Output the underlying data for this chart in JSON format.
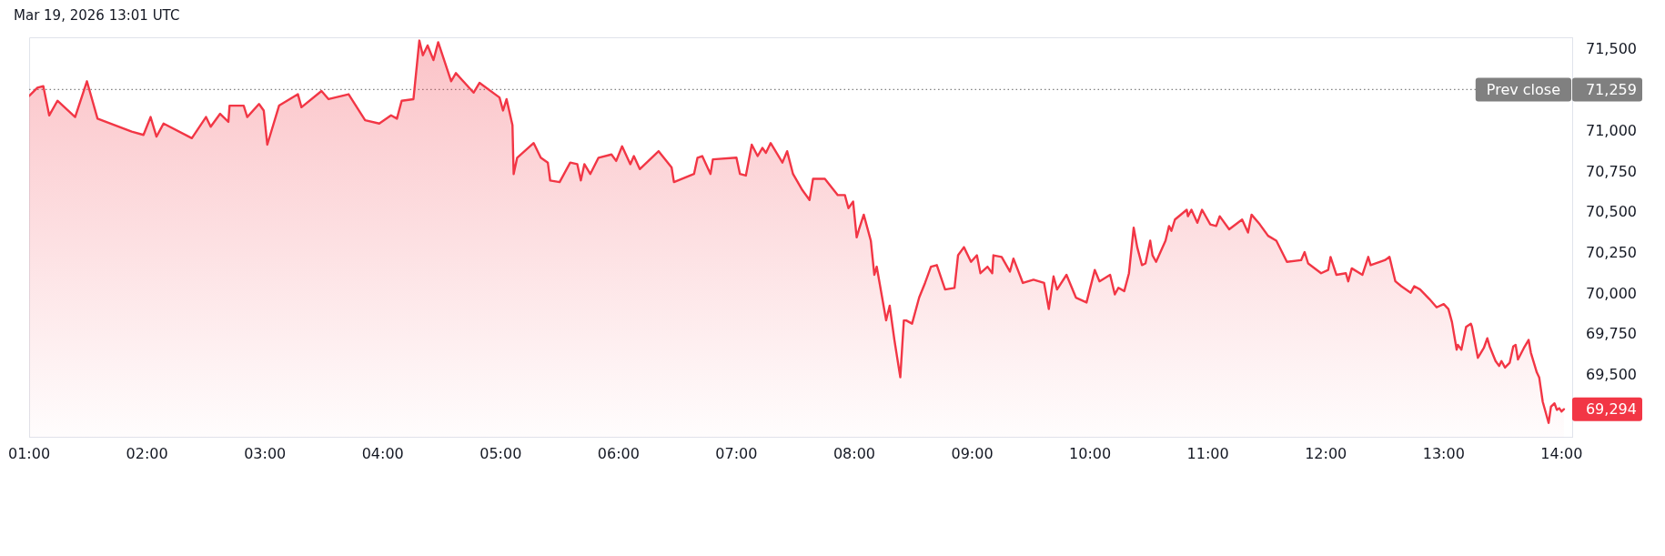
{
  "chart_data": {
    "type": "area",
    "color": "#f23645",
    "x": [
      1.0,
      1.07,
      1.12,
      1.17,
      1.24,
      1.39,
      1.49,
      1.58,
      1.87,
      1.97,
      2.03,
      2.08,
      2.14,
      2.38,
      2.5,
      2.54,
      2.62,
      2.69,
      2.7,
      2.82,
      2.85,
      2.95,
      2.99,
      3.02,
      3.12,
      3.28,
      3.31,
      3.48,
      3.54,
      3.71,
      3.85,
      3.97,
      4.07,
      4.12,
      4.16,
      4.26,
      4.31,
      4.34,
      4.38,
      4.43,
      4.47,
      4.58,
      4.62,
      4.77,
      4.82,
      4.99,
      5.02,
      5.05,
      5.1,
      5.11,
      5.14,
      5.28,
      5.34,
      5.4,
      5.42,
      5.5,
      5.59,
      5.65,
      5.68,
      5.71,
      5.76,
      5.83,
      5.94,
      5.98,
      6.03,
      6.1,
      6.13,
      6.18,
      6.34,
      6.45,
      6.47,
      6.64,
      6.67,
      6.71,
      6.78,
      6.8,
      7.0,
      7.03,
      7.08,
      7.13,
      7.18,
      7.22,
      7.25,
      7.29,
      7.39,
      7.43,
      7.48,
      7.56,
      7.62,
      7.65,
      7.75,
      7.86,
      7.92,
      7.95,
      7.99,
      8.02,
      8.04,
      8.08,
      8.14,
      8.17,
      8.19,
      8.27,
      8.3,
      8.34,
      8.39,
      8.42,
      8.44,
      8.49,
      8.55,
      8.6,
      8.65,
      8.7,
      8.77,
      8.85,
      8.88,
      8.93,
      8.99,
      9.04,
      9.07,
      9.13,
      9.17,
      9.18,
      9.25,
      9.32,
      9.35,
      9.43,
      9.52,
      9.61,
      9.65,
      9.69,
      9.72,
      9.8,
      9.88,
      9.97,
      10.04,
      10.08,
      10.17,
      10.21,
      10.24,
      10.29,
      10.33,
      10.37,
      10.4,
      10.44,
      10.47,
      10.51,
      10.53,
      10.56,
      10.64,
      10.67,
      10.69,
      10.72,
      10.82,
      10.83,
      10.86,
      10.91,
      10.95,
      11.02,
      11.07,
      11.1,
      11.18,
      11.29,
      11.34,
      11.37,
      11.44,
      11.51,
      11.58,
      11.67,
      11.79,
      11.82,
      11.85,
      11.96,
      12.02,
      12.04,
      12.09,
      12.17,
      12.19,
      12.22,
      12.31,
      12.36,
      12.38,
      12.5,
      12.54,
      12.59,
      12.64,
      12.72,
      12.75,
      12.8,
      12.88,
      12.94,
      13.0,
      13.04,
      13.07,
      13.11,
      13.12,
      13.15,
      13.19,
      13.23,
      13.24,
      13.29,
      13.34,
      13.37,
      13.39,
      13.44,
      13.47,
      13.49,
      13.52,
      13.56,
      13.59,
      13.61,
      13.63,
      13.68,
      13.72,
      13.74,
      13.79,
      13.81,
      13.84,
      13.89,
      13.91,
      13.94,
      13.96,
      13.98,
      14.0,
      14.02
    ],
    "values": [
      71220,
      71270,
      71280,
      71100,
      71190,
      71090,
      71310,
      71080,
      71000,
      70980,
      71090,
      70970,
      71050,
      70960,
      71090,
      71030,
      71110,
      71060,
      71160,
      71160,
      71090,
      71170,
      71130,
      70920,
      71160,
      71230,
      71150,
      71250,
      71200,
      71230,
      71070,
      71050,
      71100,
      71080,
      71190,
      71200,
      71560,
      71470,
      71530,
      71440,
      71550,
      71310,
      71360,
      71240,
      71300,
      71210,
      71130,
      71200,
      71040,
      70740,
      70840,
      70930,
      70840,
      70810,
      70700,
      70690,
      70810,
      70800,
      70700,
      70800,
      70740,
      70840,
      70860,
      70820,
      70910,
      70800,
      70850,
      70770,
      70880,
      70780,
      70690,
      70740,
      70840,
      70850,
      70740,
      70830,
      70840,
      70740,
      70730,
      70920,
      70850,
      70900,
      70870,
      70930,
      70810,
      70880,
      70740,
      70640,
      70580,
      70710,
      70710,
      70610,
      70610,
      70530,
      70570,
      70350,
      70400,
      70490,
      70330,
      70120,
      70170,
      69840,
      69930,
      69720,
      69490,
      69840,
      69840,
      69820,
      69980,
      70070,
      70170,
      70180,
      70030,
      70040,
      70240,
      70290,
      70200,
      70240,
      70130,
      70170,
      70130,
      70240,
      70230,
      70140,
      70220,
      70070,
      70090,
      70070,
      69910,
      70110,
      70030,
      70120,
      69980,
      69950,
      70150,
      70080,
      70120,
      70000,
      70040,
      70020,
      70130,
      70410,
      70290,
      70180,
      70190,
      70330,
      70240,
      70200,
      70330,
      70420,
      70390,
      70460,
      70520,
      70480,
      70520,
      70440,
      70520,
      70430,
      70420,
      70480,
      70400,
      70460,
      70380,
      70490,
      70430,
      70360,
      70330,
      70200,
      70210,
      70260,
      70190,
      70130,
      70150,
      70230,
      70120,
      70130,
      70080,
      70160,
      70120,
      70230,
      70180,
      70210,
      70230,
      70080,
      70050,
      70010,
      70050,
      70030,
      69970,
      69920,
      69940,
      69910,
      69830,
      69660,
      69690,
      69660,
      69800,
      69820,
      69800,
      69610,
      69670,
      69730,
      69680,
      69590,
      69560,
      69590,
      69550,
      69580,
      69680,
      69690,
      69600,
      69670,
      69720,
      69640,
      69520,
      69490,
      69340,
      69210,
      69310,
      69330,
      69290,
      69300,
      69280,
      69294
    ],
    "xlim": [
      1,
      14.09
    ],
    "ylim": [
      69120,
      71580
    ],
    "xticks": [
      {
        "value": 1,
        "label": "01:00"
      },
      {
        "value": 2,
        "label": "02:00"
      },
      {
        "value": 3,
        "label": "03:00"
      },
      {
        "value": 4,
        "label": "04:00"
      },
      {
        "value": 5,
        "label": "05:00"
      },
      {
        "value": 6,
        "label": "06:00"
      },
      {
        "value": 7,
        "label": "07:00"
      },
      {
        "value": 8,
        "label": "08:00"
      },
      {
        "value": 9,
        "label": "09:00"
      },
      {
        "value": 10,
        "label": "10:00"
      },
      {
        "value": 11,
        "label": "11:00"
      },
      {
        "value": 12,
        "label": "12:00"
      },
      {
        "value": 13,
        "label": "13:00"
      },
      {
        "value": 14,
        "label": "14:00"
      }
    ],
    "yticks": [
      {
        "value": 69500,
        "label": "69,500"
      },
      {
        "value": 69750,
        "label": "69,750"
      },
      {
        "value": 70000,
        "label": "70,000"
      },
      {
        "value": 70250,
        "label": "70,250"
      },
      {
        "value": 70500,
        "label": "70,500"
      },
      {
        "value": 70750,
        "label": "70,750"
      },
      {
        "value": 71000,
        "label": "71,000"
      },
      {
        "value": 71500,
        "label": "71,500"
      }
    ],
    "ref_lines": [
      {
        "axis": "y",
        "value": 71259,
        "label": "Prev close",
        "color": "#808080",
        "line_style": "dotted"
      }
    ],
    "annotations": [
      "Mar 19, 2026 13:01 UTC",
      {
        "text": "71,259",
        "x": 14.02,
        "y": 71259
      },
      {
        "text": "69,294",
        "x": 14.02,
        "y": 69294
      }
    ]
  }
}
